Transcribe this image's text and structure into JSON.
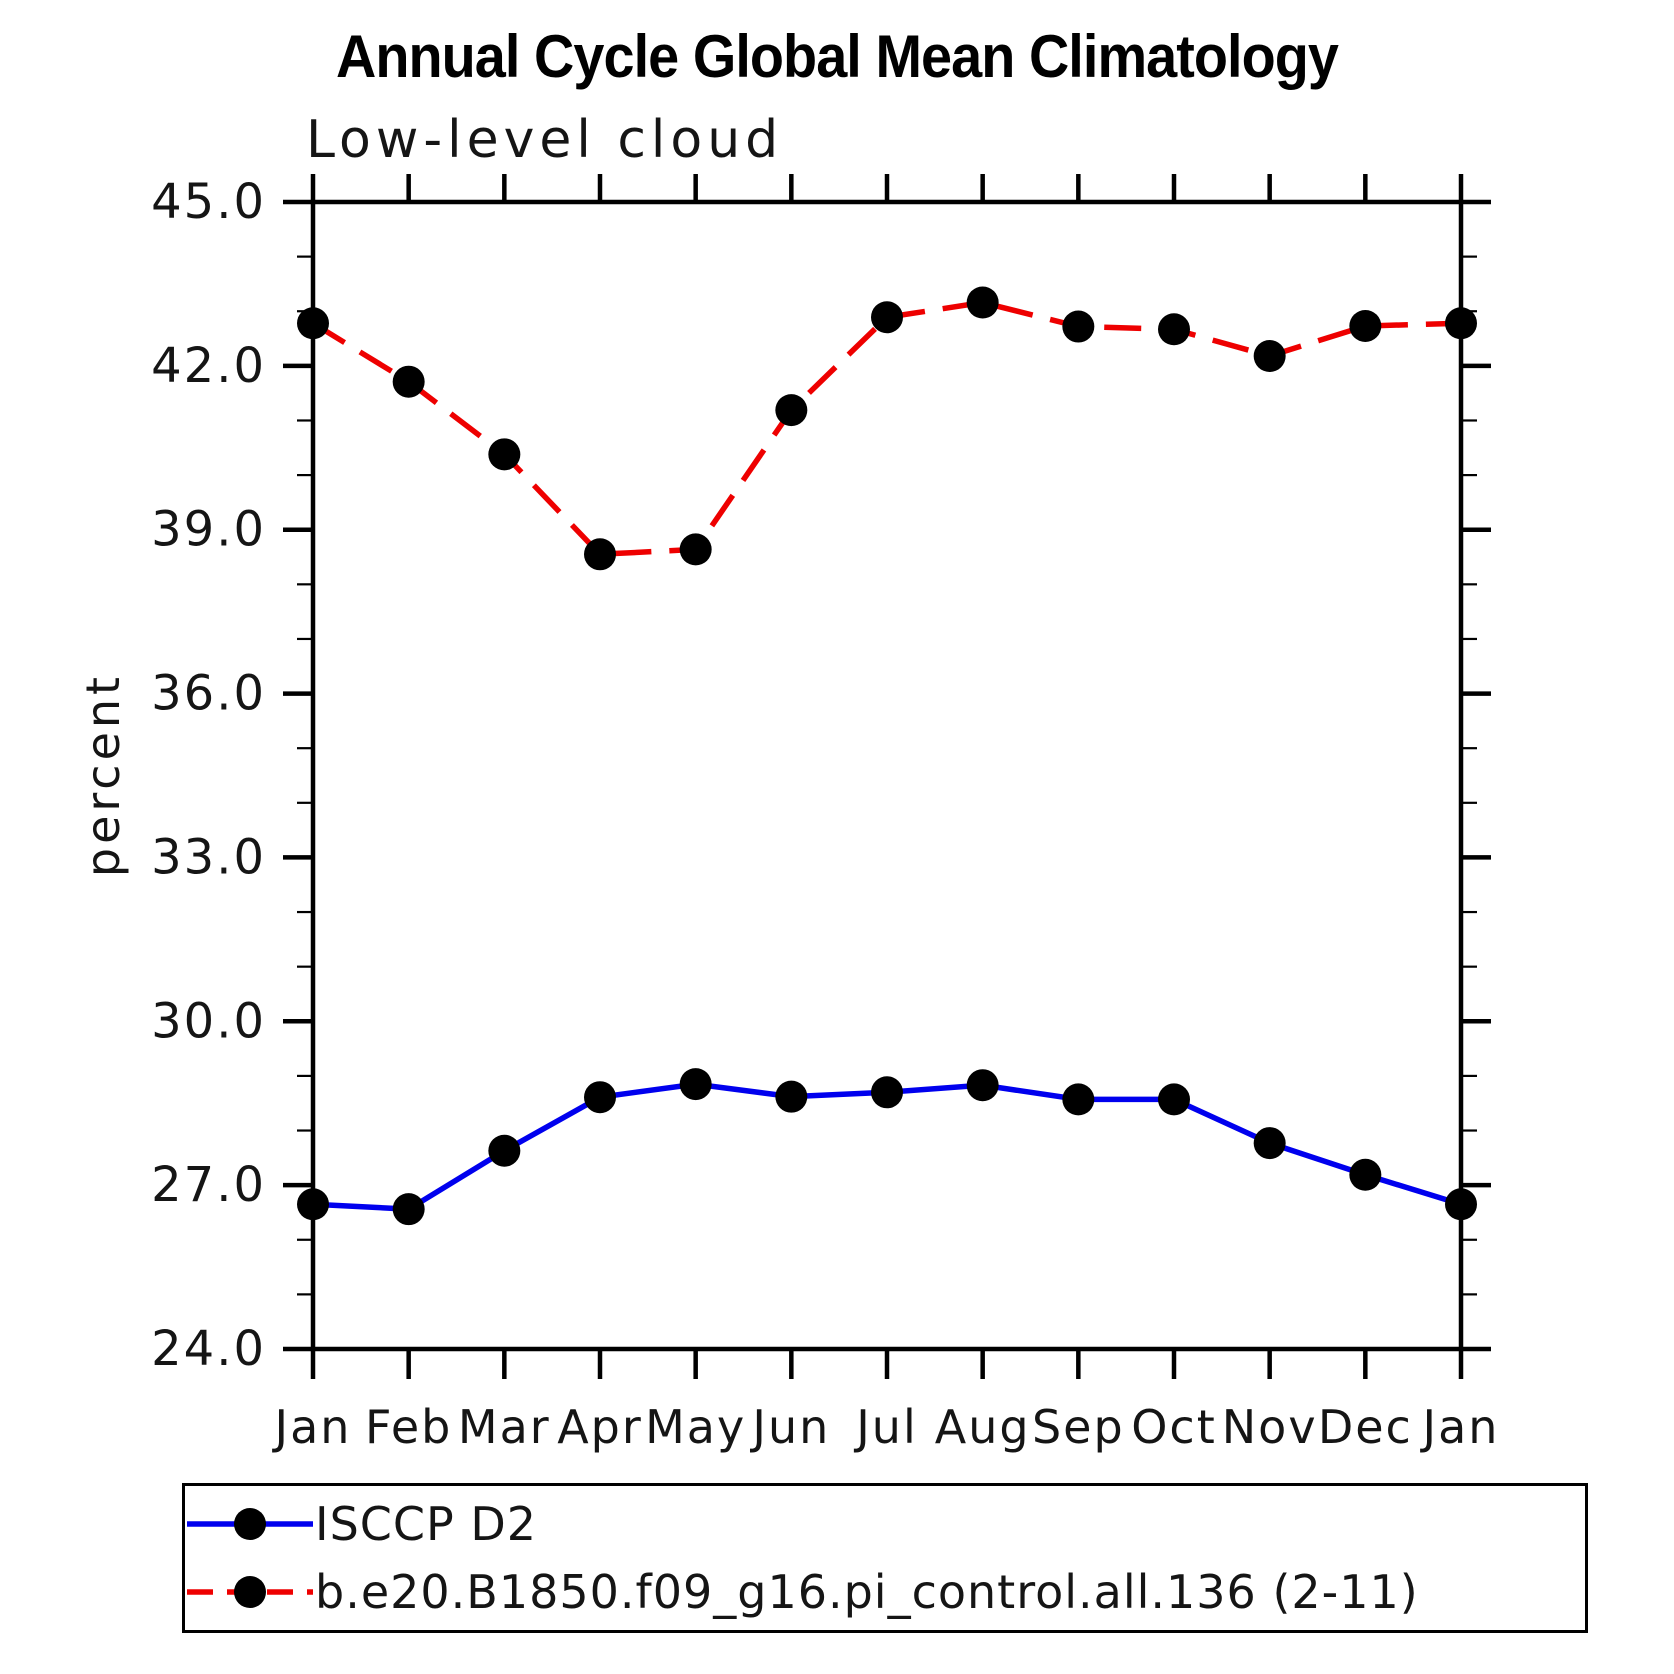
{
  "chart_data": {
    "type": "line",
    "title": "Annual Cycle Global Mean Climatology",
    "subtitle": "Low-level cloud",
    "ylabel": "percent",
    "xlabel": "",
    "categories": [
      "Jan",
      "Feb",
      "Mar",
      "Apr",
      "May",
      "Jun",
      "Jul",
      "Aug",
      "Sep",
      "Oct",
      "Nov",
      "Dec",
      "Jan"
    ],
    "series": [
      {
        "name": "ISCCP D2",
        "line_style": "solid",
        "color": "#0000ee",
        "marker": "circle",
        "marker_color": "#000000",
        "values": [
          26.65,
          26.56,
          27.63,
          28.61,
          28.85,
          28.62,
          28.7,
          28.83,
          28.57,
          28.57,
          27.77,
          27.19,
          26.65
        ]
      },
      {
        "name": "b.e20.B1850.f09_g16.pi_control.all.136 (2-11)",
        "line_style": "dashed",
        "color": "#ee0000",
        "marker": "circle",
        "marker_color": "#000000",
        "values": [
          42.78,
          41.71,
          40.38,
          38.55,
          38.64,
          41.19,
          42.89,
          43.16,
          42.72,
          42.67,
          42.18,
          42.73,
          42.78
        ]
      }
    ],
    "ylim": [
      24.0,
      45.0
    ],
    "ytick_major_interval": 3.0,
    "ytick_minor_interval": 1.0,
    "ytick_labels": [
      "24.0",
      "27.0",
      "30.0",
      "33.0",
      "36.0",
      "39.0",
      "42.0",
      "45.0"
    ],
    "grid": false,
    "legend_position": "bottom-left"
  },
  "legend": {
    "items": [
      {
        "label": "ISCCP D2",
        "swatch": "blue-solid-line-black-dot"
      },
      {
        "label": "b.e20.B1850.f09_g16.pi_control.all.136 (2-11)",
        "swatch": "red-dashed-line-black-dot"
      }
    ]
  }
}
